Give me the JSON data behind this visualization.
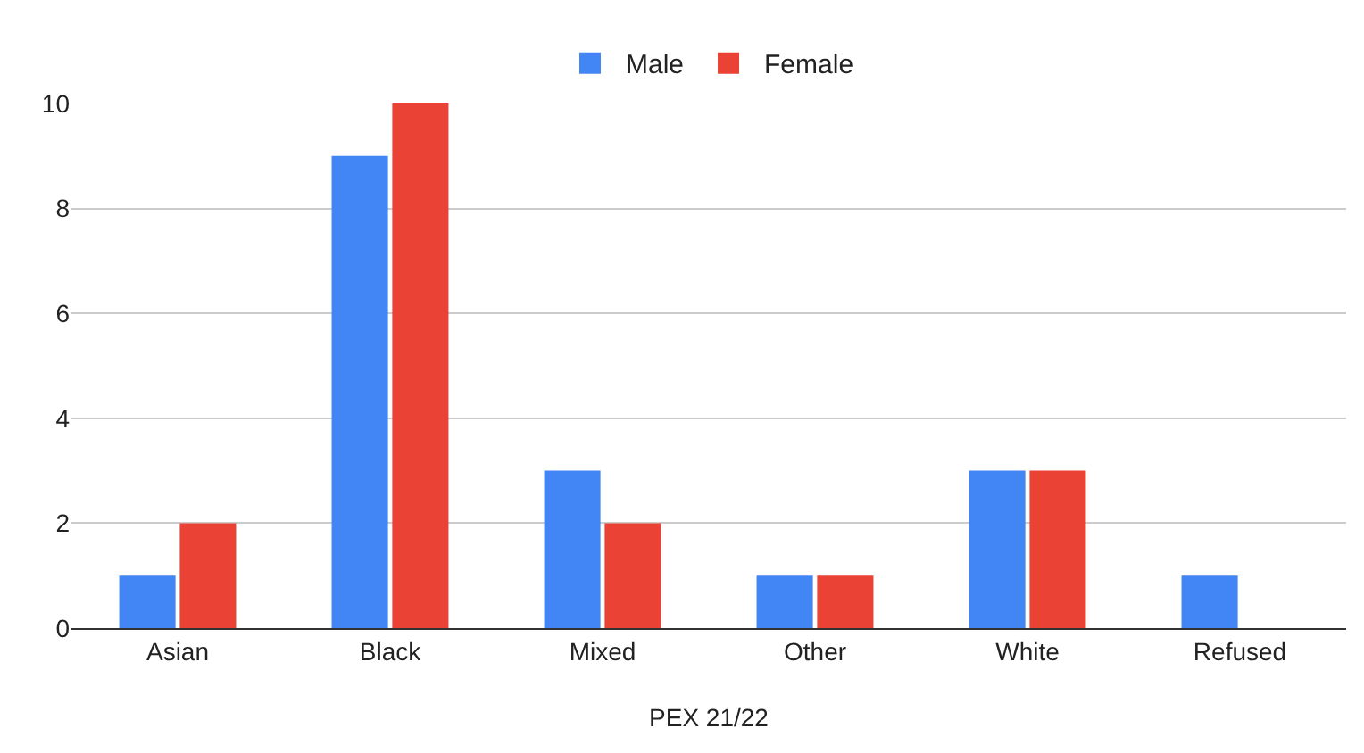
{
  "chart_data": {
    "type": "bar",
    "xlabel": "PEX 21/22",
    "categories": [
      "Asian",
      "Black",
      "Mixed",
      "Other",
      "White",
      "Refused"
    ],
    "series": [
      {
        "name": "Male",
        "color": "#4285f4",
        "values": [
          1,
          9,
          3,
          1,
          3,
          1
        ]
      },
      {
        "name": "Female",
        "color": "#ea4335",
        "values": [
          2,
          10,
          2,
          1,
          3,
          0
        ]
      }
    ],
    "ylim": [
      0,
      10
    ],
    "yticks": [
      0,
      2,
      4,
      6,
      8,
      10
    ],
    "grid": "y",
    "legend": "top"
  }
}
